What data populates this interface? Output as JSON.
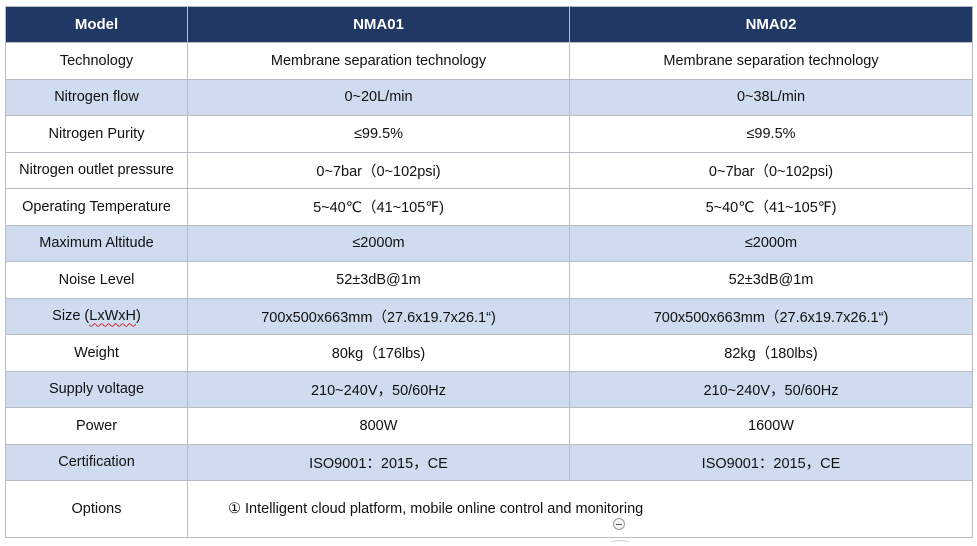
{
  "table": {
    "headers": [
      "Model",
      "NMA01",
      "NMA02"
    ],
    "rows": [
      {
        "label": "Technology",
        "nma01": "Membrane separation technology",
        "nma02": "Membrane separation technology"
      },
      {
        "label": "Nitrogen flow",
        "nma01": "0~20L/min",
        "nma02": "0~38L/min"
      },
      {
        "label": "Nitrogen Purity",
        "nma01": "≤99.5%",
        "nma02": "≤99.5%"
      },
      {
        "label": "Nitrogen outlet pressure",
        "nma01": "0~7bar（0~102psi)",
        "nma02": "0~7bar（0~102psi)"
      },
      {
        "label": "Operating Temperature",
        "nma01": "5~40℃（41~105℉)",
        "nma02": "5~40℃（41~105℉)"
      },
      {
        "label": "Maximum Altitude",
        "nma01": "≤2000m",
        "nma02": "≤2000m"
      },
      {
        "label": "Noise Level",
        "nma01": "52±3dB@1m",
        "nma02": "52±3dB@1m"
      },
      {
        "label_prefix": "Size (",
        "label_wavy": "LxWxH",
        "label_suffix": ")",
        "nma01": "700x500x663mm（27.6x19.7x26.1“)",
        "nma02": "700x500x663mm（27.6x19.7x26.1“)"
      },
      {
        "label": "Weight",
        "nma01": "80kg（176lbs)",
        "nma02": "82kg（180lbs)"
      },
      {
        "label": "Supply voltage",
        "nma01": "210~240V，50/60Hz",
        "nma02": "210~240V，50/60Hz"
      },
      {
        "label": "Power",
        "nma01": "800W",
        "nma02": "1600W"
      },
      {
        "label": "Certification",
        "nma01": "ISO9001：2015，CE",
        "nma02": "ISO9001：2015，CE"
      }
    ],
    "options": {
      "label": "Options",
      "value": "① Intelligent cloud platform, mobile online control and monitoring"
    }
  },
  "colors": {
    "header_bg": "#213864",
    "alt_row_bg": "#cfdbef"
  },
  "icons": [
    "collapse-icon"
  ]
}
